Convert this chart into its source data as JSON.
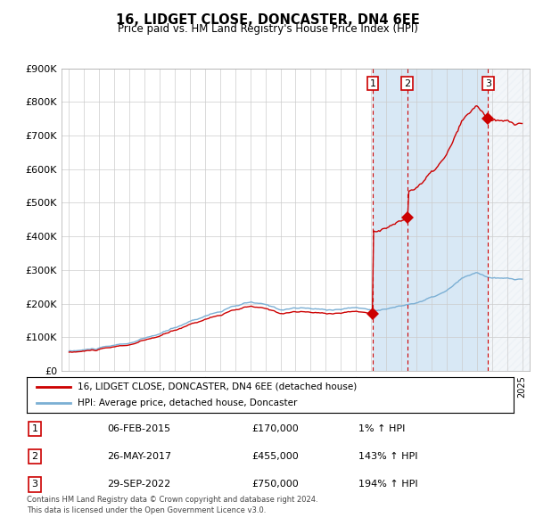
{
  "title": "16, LIDGET CLOSE, DONCASTER, DN4 6EE",
  "subtitle": "Price paid vs. HM Land Registry's House Price Index (HPI)",
  "footer_line1": "Contains HM Land Registry data © Crown copyright and database right 2024.",
  "footer_line2": "This data is licensed under the Open Government Licence v3.0.",
  "legend_line1": "16, LIDGET CLOSE, DONCASTER, DN4 6EE (detached house)",
  "legend_line2": "HPI: Average price, detached house, Doncaster",
  "transactions": [
    {
      "num": 1,
      "date": "06-FEB-2015",
      "price": 170000,
      "hpi_pct": "1%",
      "year": 2015.1
    },
    {
      "num": 2,
      "date": "26-MAY-2017",
      "price": 455000,
      "hpi_pct": "143%",
      "year": 2017.4
    },
    {
      "num": 3,
      "date": "29-SEP-2022",
      "price": 750000,
      "hpi_pct": "194%",
      "year": 2022.75
    }
  ],
  "hpi_color": "#7BAFD4",
  "price_color": "#CC0000",
  "shade_color": "#D8E8F5",
  "marker_color": "#CC0000",
  "vline_color": "#CC0000",
  "ylim": [
    0,
    900000
  ],
  "yticks": [
    0,
    100000,
    200000,
    300000,
    400000,
    500000,
    600000,
    700000,
    800000,
    900000
  ],
  "xlim_start": 1994.5,
  "xlim_end": 2025.5,
  "background_color": "#ffffff",
  "grid_color": "#cccccc"
}
